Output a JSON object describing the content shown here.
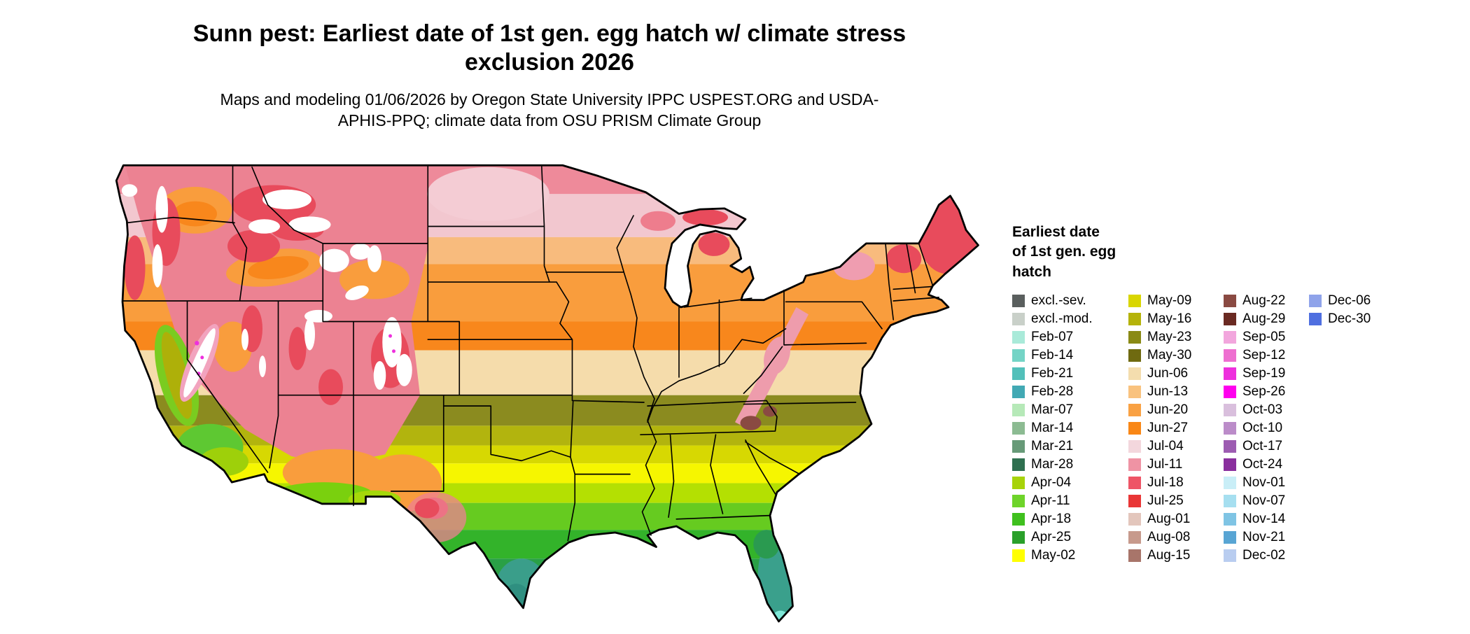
{
  "header": {
    "title": "Sunn pest: Earliest date of 1st gen. egg hatch w/ climate stress exclusion 2026",
    "subtitle": "Maps and modeling 01/06/2026 by Oregon State University IPPC USPEST.ORG and USDA-APHIS-PPQ; climate data from OSU PRISM Climate Group"
  },
  "map": {
    "region": "Continental United States",
    "kind": "raster choropleth of earliest date of 1st generation egg hatch"
  },
  "legend": {
    "title_lines": [
      "Earliest date",
      "of 1st gen. egg",
      "hatch"
    ],
    "columns": [
      [
        {
          "label": "excl.-sev.",
          "color": "#5a5f5e"
        },
        {
          "label": "excl.-mod.",
          "color": "#c9d0c9"
        },
        {
          "label": "Feb-07",
          "color": "#a9ead9"
        },
        {
          "label": "Feb-14",
          "color": "#74d4c6"
        },
        {
          "label": "Feb-21",
          "color": "#52c0ba"
        },
        {
          "label": "Feb-28",
          "color": "#42a9b4"
        },
        {
          "label": "Mar-07",
          "color": "#b6e9b8"
        },
        {
          "label": "Mar-14",
          "color": "#8cbb92"
        },
        {
          "label": "Mar-21",
          "color": "#679a78"
        },
        {
          "label": "Mar-28",
          "color": "#2f7050"
        },
        {
          "label": "Apr-04",
          "color": "#a7d30a"
        },
        {
          "label": "Apr-11",
          "color": "#6ed42a"
        },
        {
          "label": "Apr-18",
          "color": "#3fc01e"
        },
        {
          "label": "Apr-25",
          "color": "#2aa02a"
        },
        {
          "label": "May-02",
          "color": "#ffff00"
        }
      ],
      [
        {
          "label": "May-09",
          "color": "#d9d602"
        },
        {
          "label": "May-16",
          "color": "#b5b30a"
        },
        {
          "label": "May-23",
          "color": "#8a8a15"
        },
        {
          "label": "May-30",
          "color": "#6f6a10"
        },
        {
          "label": "Jun-06",
          "color": "#f4ddae"
        },
        {
          "label": "Jun-13",
          "color": "#f9c27e"
        },
        {
          "label": "Jun-20",
          "color": "#f9a143"
        },
        {
          "label": "Jun-27",
          "color": "#f98716"
        },
        {
          "label": "Jul-04",
          "color": "#f3d7dd"
        },
        {
          "label": "Jul-11",
          "color": "#ef93a4"
        },
        {
          "label": "Jul-18",
          "color": "#ee5566"
        },
        {
          "label": "Jul-25",
          "color": "#e93636"
        },
        {
          "label": "Aug-01",
          "color": "#e3c6bc"
        },
        {
          "label": "Aug-08",
          "color": "#c79a8c"
        },
        {
          "label": "Aug-15",
          "color": "#a8756a"
        }
      ],
      [
        {
          "label": "Aug-22",
          "color": "#8a4a42"
        },
        {
          "label": "Aug-29",
          "color": "#6a2a22"
        },
        {
          "label": "Sep-05",
          "color": "#f2a6dd"
        },
        {
          "label": "Sep-12",
          "color": "#ee6fd0"
        },
        {
          "label": "Sep-19",
          "color": "#ee30dd"
        },
        {
          "label": "Sep-26",
          "color": "#ff00ee"
        },
        {
          "label": "Oct-03",
          "color": "#d9bfdd"
        },
        {
          "label": "Oct-10",
          "color": "#bb8cc9"
        },
        {
          "label": "Oct-17",
          "color": "#9d5cb2"
        },
        {
          "label": "Oct-24",
          "color": "#8a2f9e"
        },
        {
          "label": "Nov-01",
          "color": "#c9eef7"
        },
        {
          "label": "Nov-07",
          "color": "#a6dff0"
        },
        {
          "label": "Nov-14",
          "color": "#7fc4e4"
        },
        {
          "label": "Nov-21",
          "color": "#58a5d4"
        },
        {
          "label": "Dec-02",
          "color": "#b9cdf0"
        }
      ],
      [
        {
          "label": "Dec-06",
          "color": "#8fa3ea"
        },
        {
          "label": "Dec-30",
          "color": "#4f6fe0"
        }
      ]
    ]
  }
}
